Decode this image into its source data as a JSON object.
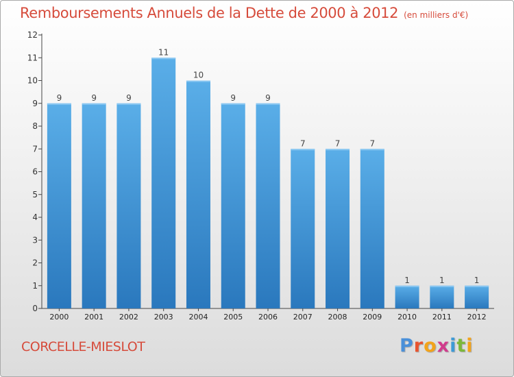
{
  "title": "Remboursements Annuels de la Dette de 2000 à 2012",
  "unit_note": "(en milliers d'€)",
  "commune": "CORCELLE-MIESLOT",
  "logo": {
    "text": "Proxiti",
    "colors": [
      "#4a90d9",
      "#e8542f",
      "#f2a31b",
      "#d13b8c",
      "#3d9ad6",
      "#7cb83a",
      "#f2a31b"
    ]
  },
  "colors": {
    "bar_top": "#5aaee8",
    "bar_bottom": "#2a78bd",
    "title": "#d64b3b"
  },
  "chart_data": {
    "type": "bar",
    "categories": [
      "2000",
      "2001",
      "2002",
      "2003",
      "2004",
      "2005",
      "2006",
      "2007",
      "2008",
      "2009",
      "2010",
      "2011",
      "2012"
    ],
    "values": [
      9,
      9,
      9,
      11,
      10,
      9,
      9,
      7,
      7,
      7,
      1,
      1,
      1
    ],
    "ylim": [
      0,
      12
    ],
    "yticks": [
      0,
      1,
      2,
      3,
      4,
      5,
      6,
      7,
      8,
      9,
      10,
      11,
      12
    ],
    "grid": false,
    "data_labels": true
  }
}
